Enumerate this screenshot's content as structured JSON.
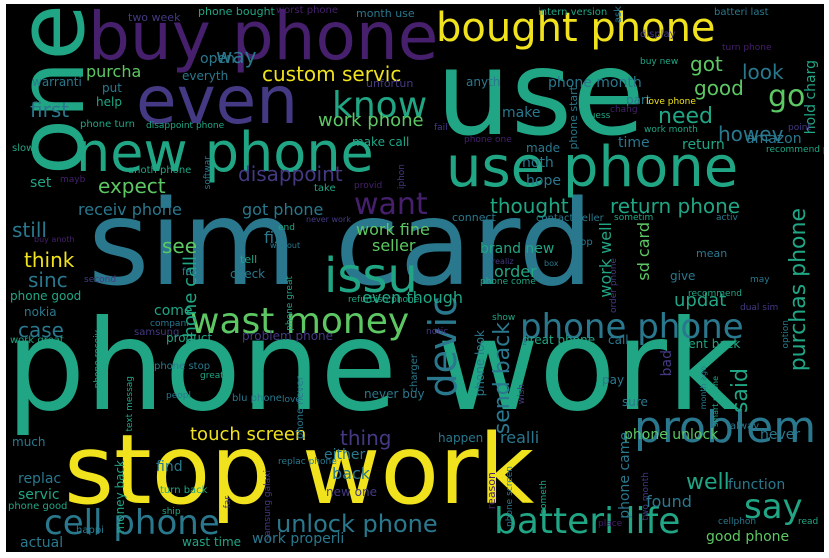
{
  "colors": {
    "background": "#000000",
    "yellow": "#f0e21c",
    "lime": "#5dc863",
    "green": "#21a685",
    "teal": "#2a788e",
    "blue": "#355f8d",
    "indigo": "#443a83",
    "purple": "#46206c"
  },
  "words": [
    {
      "text": "phone work"
    },
    {
      "text": "sim card"
    },
    {
      "text": "use"
    },
    {
      "text": "one"
    },
    {
      "text": "stop work"
    },
    {
      "text": "buy phone"
    },
    {
      "text": "bought phone"
    },
    {
      "text": "even"
    },
    {
      "text": "use phone"
    },
    {
      "text": "new phone"
    },
    {
      "text": "issu"
    },
    {
      "text": "problem"
    },
    {
      "text": "batteri life"
    },
    {
      "text": "wast money"
    },
    {
      "text": "phone phone"
    },
    {
      "text": "cell phone"
    },
    {
      "text": "devic"
    },
    {
      "text": "say"
    },
    {
      "text": "unlock phone"
    },
    {
      "text": "know"
    },
    {
      "text": "go"
    },
    {
      "text": "want"
    },
    {
      "text": "custom servic"
    },
    {
      "text": "touch screen"
    },
    {
      "text": "return phone"
    },
    {
      "text": "send back"
    },
    {
      "text": "purchas phone"
    },
    {
      "text": "well"
    },
    {
      "text": "look"
    },
    {
      "text": "thought"
    },
    {
      "text": "said"
    },
    {
      "text": "need"
    },
    {
      "text": "disappoint"
    },
    {
      "text": "see"
    },
    {
      "text": "think"
    },
    {
      "text": "first"
    },
    {
      "text": "expect"
    },
    {
      "text": "work phone"
    },
    {
      "text": "way"
    },
    {
      "text": "got"
    },
    {
      "text": "good"
    },
    {
      "text": "howev"
    },
    {
      "text": "sinc"
    },
    {
      "text": "still"
    },
    {
      "text": "case"
    },
    {
      "text": "thing"
    },
    {
      "text": "receiv phone"
    },
    {
      "text": "got phone"
    },
    {
      "text": "fix"
    },
    {
      "text": "seller"
    },
    {
      "text": "work fine"
    },
    {
      "text": "even though"
    },
    {
      "text": "order"
    },
    {
      "text": "brand new"
    },
    {
      "text": "work well"
    },
    {
      "text": "sd card"
    },
    {
      "text": "updat"
    },
    {
      "text": "phone call"
    },
    {
      "text": "purcha"
    },
    {
      "text": "phone month"
    },
    {
      "text": "phone unlock"
    },
    {
      "text": "phone came"
    },
    {
      "text": "found"
    },
    {
      "text": "function"
    },
    {
      "text": "good phone"
    },
    {
      "text": "never"
    },
    {
      "text": "back"
    },
    {
      "text": "either"
    },
    {
      "text": "realli"
    },
    {
      "text": "happen"
    },
    {
      "text": "work properli"
    },
    {
      "text": "wast time"
    },
    {
      "text": "money back"
    },
    {
      "text": "replac"
    },
    {
      "text": "servic"
    },
    {
      "text": "actual"
    },
    {
      "text": "find"
    },
    {
      "text": "make call"
    },
    {
      "text": "hope"
    },
    {
      "text": "noth"
    },
    {
      "text": "made"
    },
    {
      "text": "make"
    },
    {
      "text": "return"
    },
    {
      "text": "amazon"
    },
    {
      "text": "time"
    },
    {
      "text": "open"
    },
    {
      "text": "everyth"
    },
    {
      "text": "anyth"
    },
    {
      "text": "two week"
    },
    {
      "text": "phone bought"
    },
    {
      "text": "worst phone"
    },
    {
      "text": "month use"
    },
    {
      "text": "intern version"
    },
    {
      "text": "batteri last"
    },
    {
      "text": "ask"
    },
    {
      "text": "display"
    },
    {
      "text": "buy new"
    },
    {
      "text": "turn phone"
    },
    {
      "text": "hold charg"
    },
    {
      "text": "part"
    },
    {
      "text": "love phone"
    },
    {
      "text": "chang"
    },
    {
      "text": "work month"
    },
    {
      "text": "point"
    },
    {
      "text": "recommend phone"
    },
    {
      "text": "warranti"
    },
    {
      "text": "put"
    },
    {
      "text": "help"
    },
    {
      "text": "phone turn"
    },
    {
      "text": "disappoint phone"
    },
    {
      "text": "slow"
    },
    {
      "text": "anoth phone"
    },
    {
      "text": "set"
    },
    {
      "text": "mayb"
    },
    {
      "text": "take"
    },
    {
      "text": "softwar"
    },
    {
      "text": "iphon"
    },
    {
      "text": "unfortun"
    },
    {
      "text": "fail"
    },
    {
      "text": "phone one"
    },
    {
      "text": "phone start"
    },
    {
      "text": "guess"
    },
    {
      "text": "provid"
    },
    {
      "text": "connect"
    },
    {
      "text": "contact seller"
    },
    {
      "text": "sometim"
    },
    {
      "text": "activ"
    },
    {
      "text": "never work"
    },
    {
      "text": "end"
    },
    {
      "text": "without"
    },
    {
      "text": "buy anoth"
    },
    {
      "text": "tell"
    },
    {
      "text": "drop"
    },
    {
      "text": "mean"
    },
    {
      "text": "realiz"
    },
    {
      "text": "box"
    },
    {
      "text": "give"
    },
    {
      "text": "may"
    },
    {
      "text": "second"
    },
    {
      "text": "feel"
    },
    {
      "text": "check"
    },
    {
      "text": "phone great"
    },
    {
      "text": "phone come"
    },
    {
      "text": "recommend"
    },
    {
      "text": "dual sim"
    },
    {
      "text": "refurbish phone"
    },
    {
      "text": "phone good"
    },
    {
      "text": "nokia"
    },
    {
      "text": "come"
    },
    {
      "text": "compani"
    },
    {
      "text": "notic"
    },
    {
      "text": "show"
    },
    {
      "text": "phone look"
    },
    {
      "text": "order phone"
    },
    {
      "text": "work great"
    },
    {
      "text": "samsung"
    },
    {
      "text": "product"
    },
    {
      "text": "problem phone"
    },
    {
      "text": "great phone"
    },
    {
      "text": "call"
    },
    {
      "text": "sent back"
    },
    {
      "text": "option"
    },
    {
      "text": "bad"
    },
    {
      "text": "phone receiv"
    },
    {
      "text": "phone stop"
    },
    {
      "text": "great"
    },
    {
      "text": "charger"
    },
    {
      "text": "pay"
    },
    {
      "text": "month ago"
    },
    {
      "text": "smart phone"
    },
    {
      "text": "text messag"
    },
    {
      "text": "blu phone"
    },
    {
      "text": "peopl"
    },
    {
      "text": "love"
    },
    {
      "text": "wish"
    },
    {
      "text": "sure"
    },
    {
      "text": "alway"
    },
    {
      "text": "phone never"
    },
    {
      "text": "never buy"
    },
    {
      "text": "much"
    },
    {
      "text": "turn back"
    },
    {
      "text": "replac phone"
    },
    {
      "text": "new one"
    },
    {
      "text": "samsung galaxi"
    },
    {
      "text": "reason"
    },
    {
      "text": "phone screen"
    },
    {
      "text": "someth"
    },
    {
      "text": "two month"
    },
    {
      "text": "ship"
    },
    {
      "text": "far"
    },
    {
      "text": "place"
    },
    {
      "text": "cellphon"
    },
    {
      "text": "read"
    },
    {
      "text": "phone good"
    },
    {
      "text": "happi"
    }
  ]
}
